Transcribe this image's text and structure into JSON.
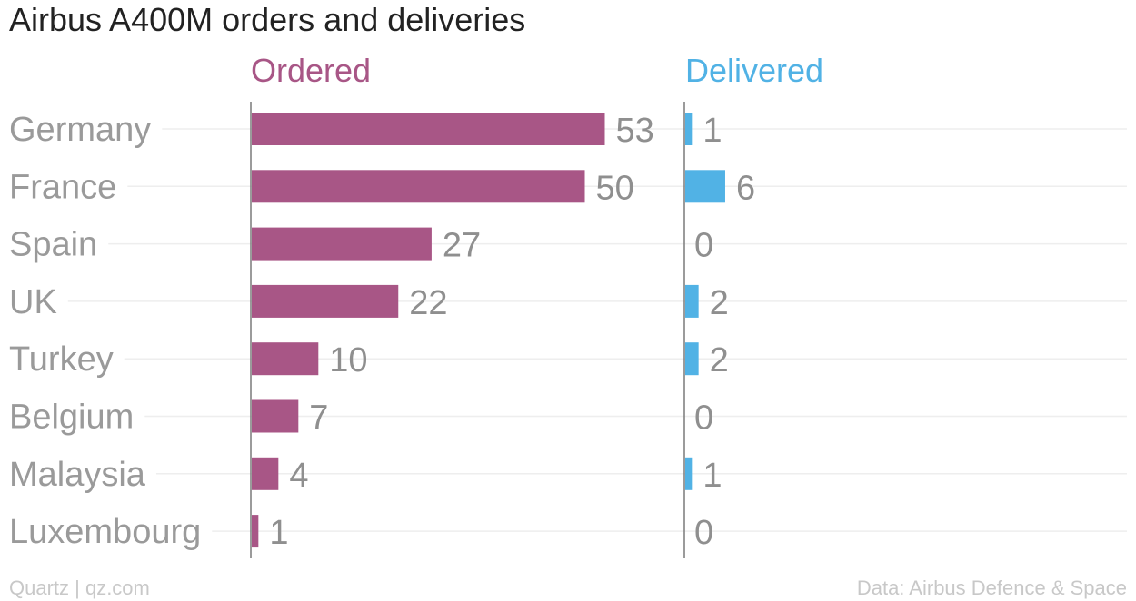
{
  "chart_data": {
    "type": "bar",
    "title": "Airbus A400M orders and deliveries",
    "categories": [
      "Germany",
      "France",
      "Spain",
      "UK",
      "Turkey",
      "Belgium",
      "Malaysia",
      "Luxembourg"
    ],
    "series": [
      {
        "name": "Ordered",
        "values": [
          53,
          50,
          27,
          22,
          10,
          7,
          4,
          1
        ],
        "color": "#a85686"
      },
      {
        "name": "Delivered",
        "values": [
          1,
          6,
          0,
          2,
          2,
          0,
          1,
          0
        ],
        "color": "#51b2e5"
      }
    ],
    "source": "Data: Airbus Defence & Space",
    "credit": "Quartz | qz.com"
  }
}
